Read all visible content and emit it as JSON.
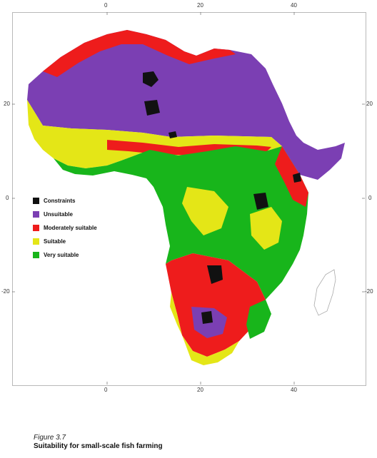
{
  "map": {
    "longitude_labels": [
      "0",
      "20",
      "40"
    ],
    "latitude_labels": [
      "20",
      "0",
      "-20"
    ]
  },
  "legend": [
    {
      "label": "Constraints",
      "color": "#111111"
    },
    {
      "label": "Unsuitable",
      "color": "#7b3fb3"
    },
    {
      "label": "Moderately suitable",
      "color": "#ee1c1c"
    },
    {
      "label": "Suitable",
      "color": "#e4e617"
    },
    {
      "label": "Very suitable",
      "color": "#18b51b"
    }
  ],
  "caption": {
    "figure_number": "Figure 3.7",
    "title": "Suitability for small-scale fish farming"
  }
}
